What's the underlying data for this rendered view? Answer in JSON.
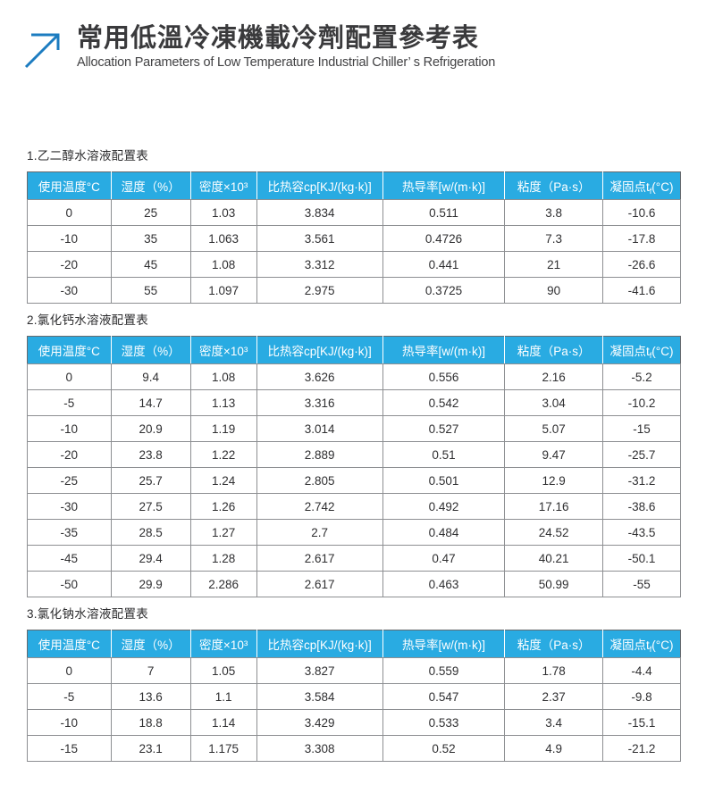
{
  "brand": {
    "title": "常用低溫冷凍機載冷劑配置參考表",
    "subtitle": "Allocation Parameters of Low Temperature Industrial Chiller’ s Refrigeration",
    "icon": "arrow-up-right-icon"
  },
  "doc_title": "常用低温冷冻机载冷剂配置参考表",
  "columns": [
    {
      "key": "temp",
      "text": "使用温度°C"
    },
    {
      "key": "humidity",
      "text": "湿度（%）"
    },
    {
      "key": "density",
      "text": "密度×10³"
    },
    {
      "key": "specific-heat",
      "text": "比热容cp[KJ/(kg·k)]"
    },
    {
      "key": "conductivity",
      "text": "热导率[w/(m·k)]"
    },
    {
      "key": "viscosity",
      "text": "粘度（Pa·s）"
    },
    {
      "key": "freezing-point",
      "pre": "凝固点t",
      "sub": "f",
      "post": "(°C)"
    }
  ],
  "tables": [
    {
      "section": "1.乙二醇水溶液配置表",
      "rows": [
        [
          "0",
          "25",
          "1.03",
          "3.834",
          "0.511",
          "3.8",
          "-10.6"
        ],
        [
          "-10",
          "35",
          "1.063",
          "3.561",
          "0.4726",
          "7.3",
          "-17.8"
        ],
        [
          "-20",
          "45",
          "1.08",
          "3.312",
          "0.441",
          "21",
          "-26.6"
        ],
        [
          "-30",
          "55",
          "1.097",
          "2.975",
          "0.3725",
          "90",
          "-41.6"
        ]
      ]
    },
    {
      "section": "2.氯化钙水溶液配置表",
      "rows": [
        [
          "0",
          "9.4",
          "1.08",
          "3.626",
          "0.556",
          "2.16",
          "-5.2"
        ],
        [
          "-5",
          "14.7",
          "1.13",
          "3.316",
          "0.542",
          "3.04",
          "-10.2"
        ],
        [
          "-10",
          "20.9",
          "1.19",
          "3.014",
          "0.527",
          "5.07",
          "-15"
        ],
        [
          "-20",
          "23.8",
          "1.22",
          "2.889",
          "0.51",
          "9.47",
          "-25.7"
        ],
        [
          "-25",
          "25.7",
          "1.24",
          "2.805",
          "0.501",
          "12.9",
          "-31.2"
        ],
        [
          "-30",
          "27.5",
          "1.26",
          "2.742",
          "0.492",
          "17.16",
          "-38.6"
        ],
        [
          "-35",
          "28.5",
          "1.27",
          "2.7",
          "0.484",
          "24.52",
          "-43.5"
        ],
        [
          "-45",
          "29.4",
          "1.28",
          "2.617",
          "0.47",
          "40.21",
          "-50.1"
        ],
        [
          "-50",
          "29.9",
          "2.286",
          "2.617",
          "0.463",
          "50.99",
          "-55"
        ]
      ]
    },
    {
      "section": "3.氯化钠水溶液配置表",
      "rows": [
        [
          "0",
          "7",
          "1.05",
          "3.827",
          "0.559",
          "1.78",
          "-4.4"
        ],
        [
          "-5",
          "13.6",
          "1.1",
          "3.584",
          "0.547",
          "2.37",
          "-9.8"
        ],
        [
          "-10",
          "18.8",
          "1.14",
          "3.429",
          "0.533",
          "3.4",
          "-15.1"
        ],
        [
          "-15",
          "23.1",
          "1.175",
          "3.308",
          "0.52",
          "4.9",
          "-21.2"
        ]
      ]
    }
  ],
  "colors": {
    "header_bg": "#29ABE2",
    "header_text": "#FFFFFF",
    "table_border_outer": "#67696C",
    "table_border_inner": "#8D8F92",
    "text": "#303032",
    "accent_arrow": "#1C7CC0"
  }
}
